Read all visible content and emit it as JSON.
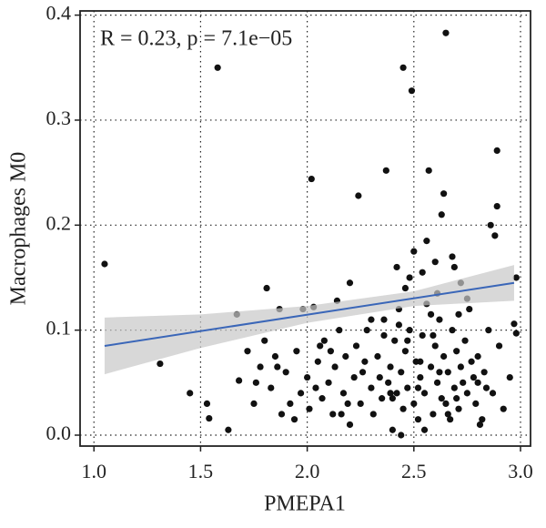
{
  "chart_data": {
    "type": "scatter",
    "annotation": "R = 0.23, p = 7.1e−05",
    "x_label": "PMEPA1",
    "y_label": "Macrophages M0",
    "xlim": [
      0.935,
      3.047
    ],
    "ylim": [
      -0.0104,
      0.404
    ],
    "xticks": [
      {
        "value": 1,
        "label": "1.0"
      },
      1.5,
      {
        "value": 2,
        "label": "2.0"
      },
      2.5,
      {
        "value": 3,
        "label": "3.0"
      }
    ],
    "yticks": [
      {
        "value": 0,
        "label": "0.0"
      },
      0.1,
      0.2,
      0.3,
      0.4
    ],
    "grid": true,
    "color": "#111111",
    "fit_color": "#3a66b8",
    "band_color": "#c8c8c8",
    "fit": {
      "x": [
        1.05,
        2.97
      ],
      "y": [
        0.085,
        0.145
      ]
    },
    "band": {
      "x": [
        1.05,
        1.5,
        2.0,
        2.5,
        2.97
      ],
      "lower": [
        0.058,
        0.083,
        0.107,
        0.123,
        0.128
      ],
      "upper": [
        0.112,
        0.115,
        0.123,
        0.137,
        0.162
      ]
    },
    "x": [
      1.05,
      1.31,
      1.58,
      2.02,
      2.24,
      2.37,
      2.45,
      2.49,
      2.65,
      2.57,
      2.89,
      2.86,
      2.89,
      2.88,
      1.45,
      1.53,
      1.54,
      1.63,
      1.68,
      1.81,
      1.67,
      1.87,
      1.98,
      2.03,
      2.14,
      2.2,
      2.98,
      2.98,
      2.97,
      2.95,
      1.72,
      1.75,
      1.78,
      1.8,
      1.83,
      1.85,
      1.88,
      1.9,
      1.92,
      1.95,
      1.97,
      2.0,
      2.01,
      2.05,
      2.07,
      2.08,
      2.1,
      2.12,
      2.13,
      2.15,
      2.17,
      2.18,
      2.2,
      2.22,
      2.23,
      2.25,
      2.26,
      2.28,
      2.3,
      2.31,
      2.33,
      2.35,
      2.36,
      2.38,
      2.39,
      2.4,
      2.41,
      2.42,
      2.43,
      2.44,
      2.45,
      2.46,
      2.47,
      2.48,
      2.5,
      2.51,
      2.52,
      2.53,
      2.54,
      2.55,
      2.56,
      2.58,
      2.59,
      2.6,
      2.61,
      2.62,
      2.63,
      2.64,
      2.66,
      2.67,
      2.68,
      2.69,
      2.7,
      2.71,
      2.72,
      2.74,
      2.75,
      2.76,
      2.78,
      2.79,
      2.8,
      2.82,
      2.83,
      2.85,
      2.87,
      2.9,
      2.92,
      1.76,
      1.86,
      1.94,
      2.04,
      2.11,
      2.19,
      2.27,
      2.34,
      2.4,
      2.44,
      2.47,
      2.52,
      2.55,
      2.58,
      2.62,
      2.66,
      2.7,
      2.73,
      2.77,
      2.81,
      2.84,
      2.42,
      2.46,
      2.5,
      2.54,
      2.6,
      2.64,
      2.68,
      2.72,
      2.36,
      2.3,
      2.16,
      2.06,
      2.43,
      2.56,
      2.61,
      2.48,
      2.39,
      2.63,
      2.69,
      2.75,
      2.53,
      2.59,
      2.8,
      2.65,
      2.71
    ],
    "values": [
      0.163,
      0.068,
      0.35,
      0.244,
      0.228,
      0.252,
      0.35,
      0.328,
      0.383,
      0.252,
      0.271,
      0.2,
      0.218,
      0.19,
      0.04,
      0.03,
      0.016,
      0.005,
      0.052,
      0.14,
      0.115,
      0.12,
      0.12,
      0.122,
      0.128,
      0.145,
      0.15,
      0.097,
      0.106,
      0.055,
      0.08,
      0.03,
      0.065,
      0.09,
      0.045,
      0.075,
      0.02,
      0.06,
      0.03,
      0.08,
      0.04,
      0.055,
      0.025,
      0.07,
      0.035,
      0.09,
      0.05,
      0.02,
      0.065,
      0.1,
      0.04,
      0.075,
      0.01,
      0.055,
      0.085,
      0.03,
      0.06,
      0.1,
      0.045,
      0.02,
      0.075,
      0.035,
      0.11,
      0.05,
      0.065,
      0.005,
      0.09,
      0.04,
      0.12,
      0.06,
      0.025,
      0.08,
      0.045,
      0.1,
      0.03,
      0.07,
      0.015,
      0.055,
      0.095,
      0.04,
      0.125,
      0.065,
      0.02,
      0.085,
      0.05,
      0.11,
      0.035,
      0.075,
      0.06,
      0.015,
      0.1,
      0.045,
      0.08,
      0.025,
      0.065,
      0.09,
      0.04,
      0.12,
      0.055,
      0.03,
      0.075,
      0.015,
      0.06,
      0.1,
      0.04,
      0.085,
      0.025,
      0.05,
      0.065,
      0.015,
      0.045,
      0.08,
      0.03,
      0.07,
      0.055,
      0.035,
      0.0,
      0.09,
      0.045,
      0.005,
      0.115,
      0.06,
      0.02,
      0.035,
      0.05,
      0.07,
      0.01,
      0.045,
      0.16,
      0.14,
      0.175,
      0.155,
      0.165,
      0.23,
      0.17,
      0.145,
      0.095,
      0.11,
      0.02,
      0.085,
      0.105,
      0.185,
      0.135,
      0.15,
      0.04,
      0.21,
      0.16,
      0.13,
      0.07,
      0.095,
      0.05,
      0.03,
      0.115
    ]
  }
}
